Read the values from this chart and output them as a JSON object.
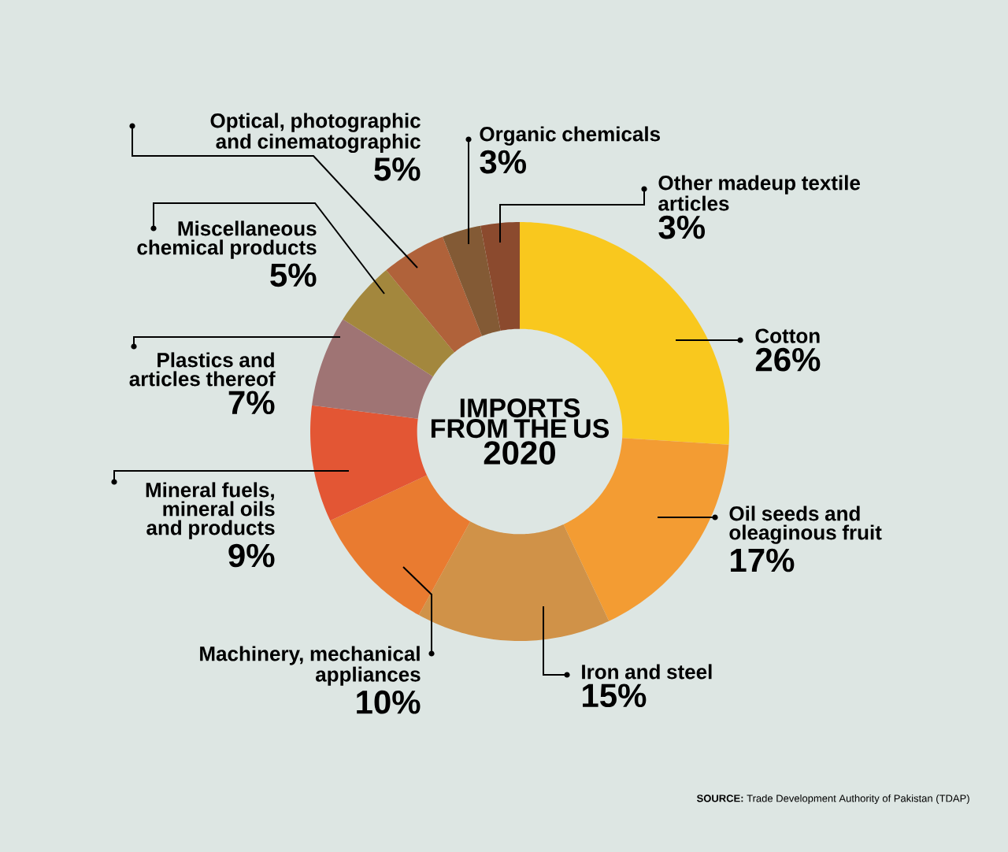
{
  "chart_data": {
    "type": "donut",
    "title": "IMPORTS FROM THE US",
    "subtitle": "2020",
    "categories": [
      "Cotton",
      "Oil seeds and oleaginous fruit",
      "Iron and steel",
      "Machinery, mechanical appliances",
      "Mineral fuels, mineral oils and products",
      "Plastics and articles thereof",
      "Miscellaneous chemical products",
      "Optical, photographic and cinematographic",
      "Organic chemicals",
      "Other madeup textile articles"
    ],
    "values": [
      26,
      17,
      15,
      10,
      9,
      7,
      5,
      5,
      3,
      3
    ],
    "value_labels": [
      "26%",
      "17%",
      "15%",
      "10%",
      "9%",
      "7%",
      "5%",
      "5%",
      "3%",
      "3%"
    ],
    "colors": [
      "#f9c81e",
      "#f39c33",
      "#d09248",
      "#e97b30",
      "#e35634",
      "#9f7474",
      "#a3873d",
      "#b0623a",
      "#835a35",
      "#8b4a2e"
    ],
    "annotations": [
      "**SOURCE:** Trade Development Authority of Pakistan (TDAP)"
    ]
  }
}
